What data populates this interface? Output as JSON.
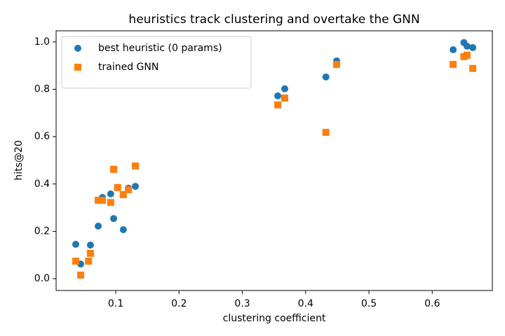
{
  "chart_data": {
    "type": "scatter",
    "title": "heuristics track clustering and overtake the GNN",
    "xlabel": "clustering coefficient",
    "ylabel": "hits@20",
    "xlim": [
      0.0058,
      0.695
    ],
    "ylim": [
      -0.05,
      1.047
    ],
    "xticks": [
      0.1,
      0.2,
      0.3,
      0.4,
      0.5,
      0.6
    ],
    "yticks": [
      {
        "value": 0,
        "label": "0.0"
      },
      0.2,
      0.4,
      0.6,
      0.8,
      {
        "value": 1,
        "label": "1.0"
      }
    ],
    "grid": false,
    "legend": "upper left",
    "series": [
      {
        "name": "best heuristic (0 params)",
        "color": "#1f77b4",
        "marker": "circle",
        "x": [
          0.0368,
          0.0446,
          0.06,
          0.0723,
          0.079,
          0.092,
          0.0967,
          0.112,
          0.12,
          0.131,
          0.356,
          0.367,
          0.432,
          0.449,
          0.633,
          0.65,
          0.655,
          0.664
        ],
        "values": [
          0.145,
          0.062,
          0.142,
          0.222,
          0.343,
          0.358,
          0.254,
          0.207,
          0.382,
          0.39,
          0.772,
          0.802,
          0.852,
          0.92,
          0.967,
          0.997,
          0.982,
          0.976
        ]
      },
      {
        "name": "trained GNN",
        "color": "#ff7f0e",
        "marker": "square",
        "x": [
          0.0368,
          0.0446,
          0.057,
          0.06,
          0.0723,
          0.079,
          0.092,
          0.0967,
          0.103,
          0.112,
          0.12,
          0.131,
          0.356,
          0.367,
          0.432,
          0.449,
          0.633,
          0.65,
          0.655,
          0.664
        ],
        "values": [
          0.074,
          0.015,
          0.074,
          0.107,
          0.331,
          0.331,
          0.322,
          0.462,
          0.385,
          0.355,
          0.376,
          0.476,
          0.734,
          0.763,
          0.618,
          0.905,
          0.905,
          0.938,
          0.944,
          0.888
        ]
      }
    ]
  }
}
